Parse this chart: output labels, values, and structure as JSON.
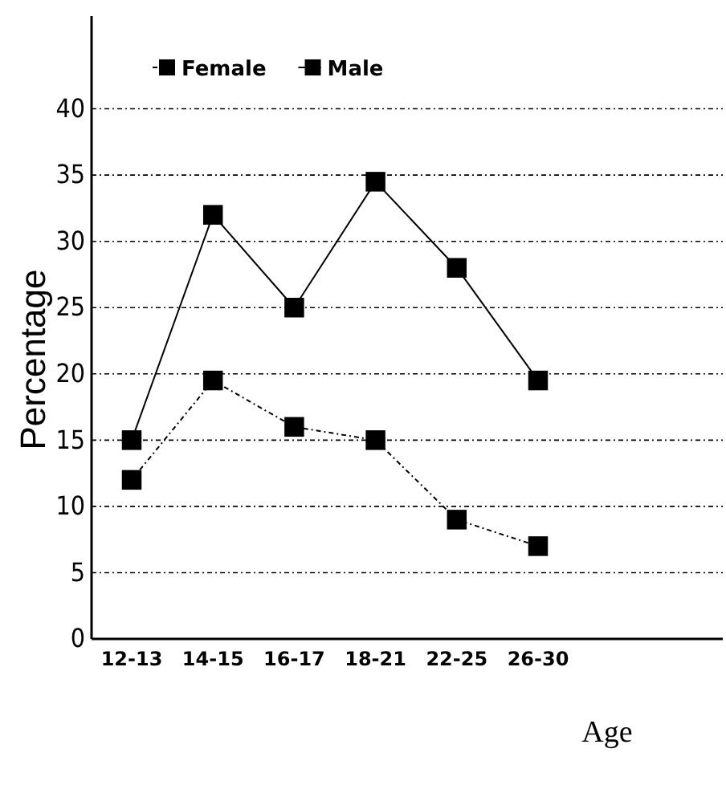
{
  "chart_data": {
    "type": "line",
    "xlabel": "Age",
    "ylabel": "Percentage",
    "categories": [
      "12-13",
      "14-15",
      "16-17",
      "18-21",
      "22-25",
      "26-30"
    ],
    "series": [
      {
        "name": "Female",
        "color": "#000000",
        "line_style": "dotted",
        "values": [
          12,
          19.5,
          16,
          15,
          9,
          7
        ]
      },
      {
        "name": "Male",
        "color": "#000000",
        "line_style": "solid",
        "values": [
          15,
          32,
          25,
          34.5,
          28,
          19.5
        ]
      }
    ],
    "ylim": [
      0,
      47
    ],
    "yticks": [
      0,
      5,
      10,
      15,
      20,
      25,
      30,
      35,
      40
    ],
    "grid": "y",
    "legend": "top left",
    "marker": "square"
  }
}
